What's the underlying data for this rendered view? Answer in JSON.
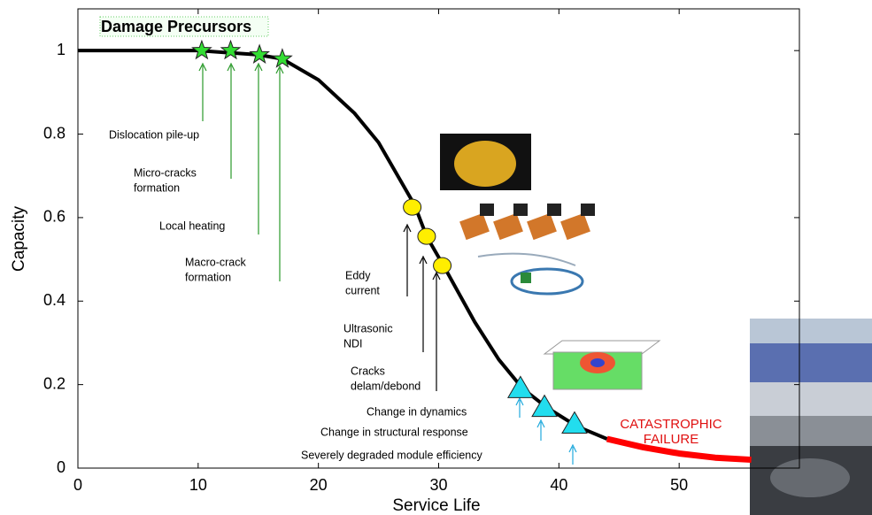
{
  "chart_data": {
    "type": "line",
    "title": "Damage Precursors",
    "x_label": "Service Life",
    "y_label": "Capacity",
    "xlim": [
      0,
      60
    ],
    "ylim": [
      0,
      1.1
    ],
    "xticks": [
      0,
      10,
      20,
      30,
      40,
      50
    ],
    "yticks": [
      0,
      0.2,
      0.4,
      0.6,
      0.8,
      1
    ],
    "series": [
      {
        "color": "#000000",
        "x": [
          0,
          10,
          15,
          17,
          20,
          23,
          25,
          28,
          29,
          30.5,
          33,
          35,
          37,
          39,
          41.5,
          44
        ],
        "values": [
          1,
          1,
          0.99,
          0.98,
          0.93,
          0.85,
          0.78,
          0.63,
          0.555,
          0.48,
          0.35,
          0.26,
          0.19,
          0.145,
          0.1,
          0.07
        ]
      },
      {
        "color": "#ff0000",
        "x": [
          44,
          47,
          50,
          53,
          56
        ],
        "values": [
          0.07,
          0.05,
          0.035,
          0.025,
          0.02
        ]
      }
    ],
    "markers": [
      {
        "marker": "star",
        "color": "#33dd33",
        "x": [
          10.3,
          12.7,
          15.1,
          17
        ],
        "values": [
          1,
          1,
          0.99,
          0.98
        ]
      },
      {
        "marker": "circle",
        "color": "#ffee00",
        "x": [
          27.8,
          29,
          30.3
        ],
        "values": [
          0.625,
          0.555,
          0.485
        ]
      },
      {
        "marker": "triangle",
        "color": "#22ddee",
        "x": [
          36.8,
          38.8,
          41.3
        ],
        "values": [
          0.19,
          0.145,
          0.105
        ]
      }
    ],
    "annotations": [
      [
        "Dislocation pile-up"
      ],
      [
        "Micro-cracks",
        "formation"
      ],
      [
        "Local heating"
      ],
      [
        "Macro-crack",
        "formation"
      ],
      [
        "Eddy",
        "current"
      ],
      [
        "Ultrasonic",
        "NDI"
      ],
      [
        "Cracks",
        "delam/debond"
      ],
      [
        "Change in dynamics"
      ],
      [
        "Change in structural response"
      ],
      [
        "Severely degraded  module efficiency"
      ],
      [
        "CATASTROPHIC",
        "FAILURE"
      ]
    ]
  }
}
